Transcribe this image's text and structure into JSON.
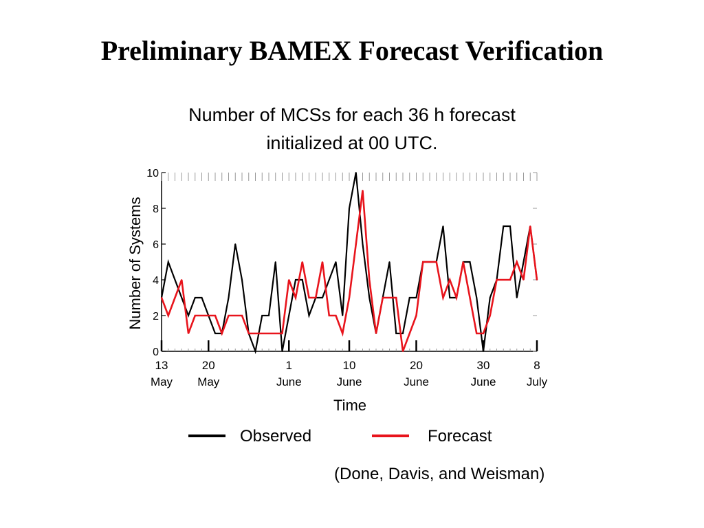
{
  "slide": {
    "title": "Preliminary BAMEX Forecast Verification",
    "subtitle_line1": "Number of MCSs for each 36 h forecast",
    "subtitle_line2": "initialized at 00 UTC.",
    "credit": "(Done, Davis, and Weisman)"
  },
  "legend": {
    "observed_label": "Observed",
    "forecast_label": "Forecast"
  },
  "colors": {
    "observed": "#000000",
    "forecast": "#e8141c",
    "axis": "#000000",
    "grid": "#aaaaaa"
  },
  "chart_data": {
    "type": "line",
    "title": "",
    "xlabel": "Time",
    "ylabel": "Number of Systems",
    "ylim": [
      0,
      10
    ],
    "yticks": [
      0,
      2,
      4,
      6,
      8,
      10
    ],
    "xlim": [
      "May 13",
      "July 8"
    ],
    "xticks": [
      {
        "day_line": "13",
        "month_line": "May"
      },
      {
        "day_line": "20",
        "month_line": "May"
      },
      {
        "day_line": "1",
        "month_line": "June"
      },
      {
        "day_line": "10",
        "month_line": "June"
      },
      {
        "day_line": "20",
        "month_line": "June"
      },
      {
        "day_line": "30",
        "month_line": "June"
      },
      {
        "day_line": "8",
        "month_line": "July"
      }
    ],
    "x": [
      "May 13",
      "May 14",
      "May 15",
      "May 16",
      "May 17",
      "May 18",
      "May 19",
      "May 20",
      "May 21",
      "May 22",
      "May 23",
      "May 24",
      "May 25",
      "May 26",
      "May 27",
      "May 28",
      "May 29",
      "May 30",
      "May 31",
      "June 1",
      "June 2",
      "June 3",
      "June 4",
      "June 5",
      "June 6",
      "June 7",
      "June 8",
      "June 9",
      "June 10",
      "June 11",
      "June 12",
      "June 13",
      "June 14",
      "June 15",
      "June 16",
      "June 17",
      "June 18",
      "June 19",
      "June 20",
      "June 21",
      "June 22",
      "June 23",
      "June 24",
      "June 25",
      "June 26",
      "June 27",
      "June 28",
      "June 29",
      "June 30",
      "July 1",
      "July 2",
      "July 3",
      "July 4",
      "July 5",
      "July 6",
      "July 7",
      "July 8"
    ],
    "series": [
      {
        "name": "Observed",
        "color": "#000000",
        "values": [
          3,
          5,
          4,
          3,
          2,
          3,
          3,
          2,
          1,
          1,
          3,
          6,
          4,
          1,
          0,
          2,
          2,
          5,
          0,
          2,
          4,
          4,
          2,
          3,
          3,
          4,
          5,
          2,
          8,
          10,
          6,
          3,
          1,
          3,
          5,
          1,
          1,
          3,
          3,
          5,
          5,
          5,
          7,
          3,
          3,
          5,
          5,
          3,
          0,
          3,
          4,
          7,
          7,
          3,
          5,
          7,
          4
        ]
      },
      {
        "name": "Forecast",
        "color": "#e8141c",
        "values": [
          3,
          2,
          3,
          4,
          1,
          2,
          2,
          2,
          2,
          1,
          2,
          2,
          2,
          1,
          1,
          1,
          1,
          1,
          1,
          4,
          3,
          5,
          3,
          3,
          5,
          2,
          2,
          1,
          3,
          6,
          9,
          4,
          1,
          3,
          3,
          3,
          0,
          1,
          2,
          5,
          5,
          5,
          3,
          4,
          3,
          5,
          3,
          1,
          1,
          2,
          4,
          4,
          4,
          5,
          4,
          7,
          4
        ]
      }
    ],
    "grid": false,
    "legend_position": "bottom"
  }
}
